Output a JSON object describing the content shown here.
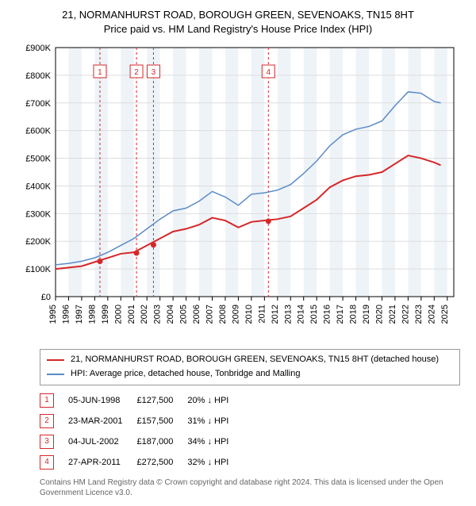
{
  "title_line1": "21, NORMANHURST ROAD, BOROUGH GREEN, SEVENOAKS, TN15 8HT",
  "title_line2": "Price paid vs. HM Land Registry's House Price Index (HPI)",
  "chart": {
    "type": "line",
    "background_color": "#ffffff",
    "grid_band_colors": [
      "#ffffff",
      "#eef3f8"
    ],
    "grid_line_color": "#dddddd",
    "axis_color": "#000000",
    "x_years": [
      1995,
      1996,
      1997,
      1998,
      1999,
      2000,
      2001,
      2002,
      2003,
      2004,
      2005,
      2006,
      2007,
      2008,
      2009,
      2010,
      2011,
      2012,
      2013,
      2014,
      2015,
      2016,
      2017,
      2018,
      2019,
      2020,
      2021,
      2022,
      2023,
      2024,
      2025
    ],
    "y_ticks": [
      "£0",
      "£100K",
      "£200K",
      "£300K",
      "£400K",
      "£500K",
      "£600K",
      "£700K",
      "£800K",
      "£900K"
    ],
    "ylim": [
      0,
      900000
    ],
    "xlim": [
      1995,
      2025.5
    ],
    "series_property": {
      "color": "#d62728",
      "width": 2,
      "points": [
        [
          1995,
          100000
        ],
        [
          1996,
          105000
        ],
        [
          1997,
          110000
        ],
        [
          1998,
          125000
        ],
        [
          1999,
          140000
        ],
        [
          2000,
          155000
        ],
        [
          2001,
          160000
        ],
        [
          2002,
          185000
        ],
        [
          2003,
          210000
        ],
        [
          2004,
          235000
        ],
        [
          2005,
          245000
        ],
        [
          2006,
          260000
        ],
        [
          2007,
          285000
        ],
        [
          2008,
          275000
        ],
        [
          2009,
          250000
        ],
        [
          2010,
          270000
        ],
        [
          2011,
          275000
        ],
        [
          2012,
          280000
        ],
        [
          2013,
          290000
        ],
        [
          2014,
          320000
        ],
        [
          2015,
          350000
        ],
        [
          2016,
          395000
        ],
        [
          2017,
          420000
        ],
        [
          2018,
          435000
        ],
        [
          2019,
          440000
        ],
        [
          2020,
          450000
        ],
        [
          2021,
          480000
        ],
        [
          2022,
          510000
        ],
        [
          2023,
          500000
        ],
        [
          2024,
          485000
        ],
        [
          2024.5,
          475000
        ]
      ]
    },
    "series_hpi": {
      "color": "#5b8bc5",
      "width": 1.5,
      "points": [
        [
          1995,
          115000
        ],
        [
          1996,
          120000
        ],
        [
          1997,
          128000
        ],
        [
          1998,
          140000
        ],
        [
          1999,
          160000
        ],
        [
          2000,
          185000
        ],
        [
          2001,
          210000
        ],
        [
          2002,
          245000
        ],
        [
          2003,
          280000
        ],
        [
          2004,
          310000
        ],
        [
          2005,
          320000
        ],
        [
          2006,
          345000
        ],
        [
          2007,
          380000
        ],
        [
          2008,
          360000
        ],
        [
          2009,
          330000
        ],
        [
          2010,
          370000
        ],
        [
          2011,
          375000
        ],
        [
          2012,
          385000
        ],
        [
          2013,
          405000
        ],
        [
          2014,
          445000
        ],
        [
          2015,
          490000
        ],
        [
          2016,
          545000
        ],
        [
          2017,
          585000
        ],
        [
          2018,
          605000
        ],
        [
          2019,
          615000
        ],
        [
          2020,
          635000
        ],
        [
          2021,
          690000
        ],
        [
          2022,
          740000
        ],
        [
          2023,
          735000
        ],
        [
          2024,
          705000
        ],
        [
          2024.5,
          700000
        ]
      ]
    },
    "transaction_markers": [
      {
        "n": "1",
        "date": "05-JUN-1998",
        "year": 1998.4,
        "price": 127500,
        "price_label": "£127,500",
        "pct": "20% ↓ HPI"
      },
      {
        "n": "2",
        "date": "23-MAR-2001",
        "year": 2001.2,
        "price": 157500,
        "price_label": "£157,500",
        "pct": "31% ↓ HPI"
      },
      {
        "n": "3",
        "date": "04-JUL-2002",
        "year": 2002.5,
        "price": 187000,
        "price_label": "£187,000",
        "pct": "34% ↓ HPI"
      },
      {
        "n": "4",
        "date": "27-APR-2011",
        "year": 2011.3,
        "price": 272500,
        "price_label": "£272,500",
        "pct": "32% ↓ HPI"
      }
    ],
    "marker_line_color": "#d62728",
    "marker_box_fill": "#ffffff",
    "marker_box_stroke": "#d62728",
    "marker_label_color": "#d62728",
    "marker_point_fill": "#d62728"
  },
  "legend": {
    "property_label": "21, NORMANHURST ROAD, BOROUGH GREEN, SEVENOAKS, TN15 8HT (detached house)",
    "hpi_label": "HPI: Average price, detached house, Tonbridge and Malling"
  },
  "footer": "Contains HM Land Registry data © Crown copyright and database right 2024. This data is licensed under the Open Government Licence v3.0."
}
